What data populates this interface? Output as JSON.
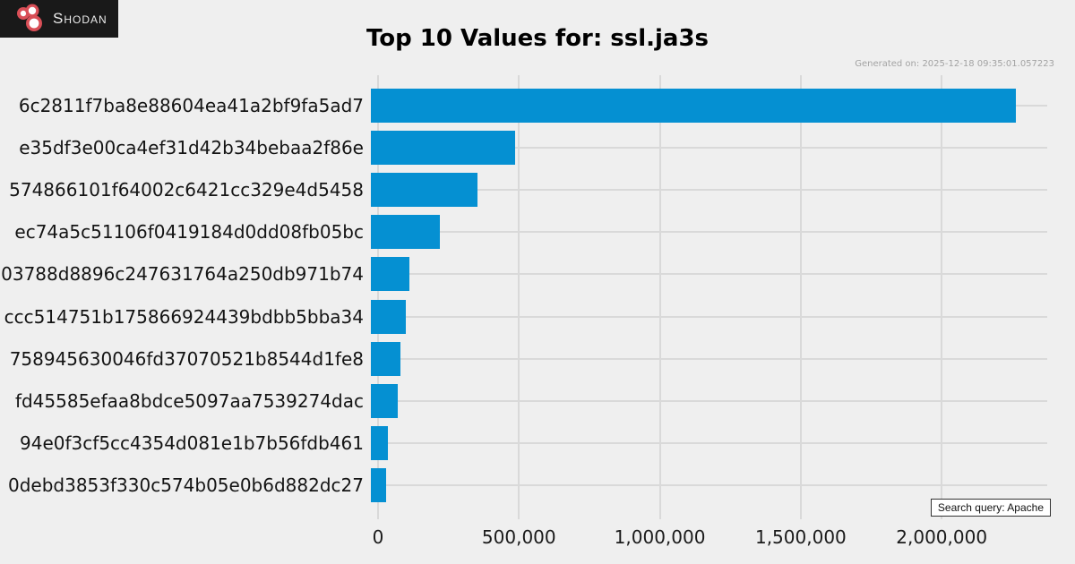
{
  "logo": {
    "brand": "Shodan"
  },
  "header": {
    "title": "Top 10 Values for: ssl.ja3s",
    "generated_on": "Generated on: 2025-12-18 09:35:01.057223"
  },
  "footer": {
    "search_query": "Search query: Apache"
  },
  "colors": {
    "background": "#efefef",
    "bar": "#0590d2",
    "grid": "#d9d9d9",
    "logo_bg": "#191919",
    "logo_red": "#d94f57"
  },
  "chart_data": {
    "type": "bar",
    "orientation": "horizontal",
    "title": "Top 10 Values for: ssl.ja3s",
    "categories": [
      "6c2811f7ba8e88604ea41a2bf9fa5ad7",
      "e35df3e00ca4ef31d42b34bebaa2f86e",
      "574866101f64002c6421cc329e4d5458",
      "ec74a5c51106f0419184d0dd08fb05bc",
      "03788d8896c247631764a250db971b74",
      "ccc514751b175866924439bdbb5bba34",
      "758945630046fd37070521b8544d1fe8",
      "fd45585efaa8bdce5097aa7539274dac",
      "94e0f3cf5cc4354d081e1b7b56fdb461",
      "0debd3853f330c574b05e0b6d882dc27"
    ],
    "values": [
      2290000,
      512000,
      379000,
      246000,
      138000,
      124000,
      104000,
      94000,
      61000,
      55000
    ],
    "xlabel": "",
    "ylabel": "",
    "xlim": [
      0,
      2400000
    ],
    "xticks": [
      0,
      500000,
      1000000,
      1500000,
      2000000
    ],
    "xtick_labels": [
      "0",
      "500,000",
      "1,000,000",
      "1,500,000",
      "2,000,000"
    ],
    "grid": true,
    "legend": false,
    "bar_color": "#0590d2"
  }
}
